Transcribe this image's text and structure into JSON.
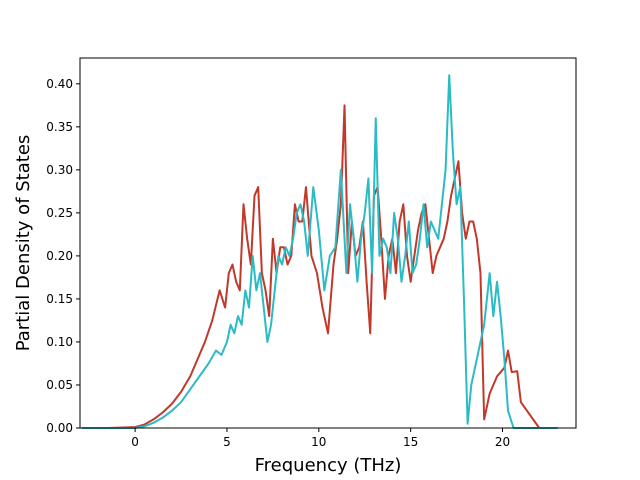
{
  "chart_data": {
    "type": "line",
    "title": "",
    "xlabel": "Frequency (THz)",
    "ylabel": "Partial Density of States",
    "xlim": [
      -3.0,
      24.0
    ],
    "ylim": [
      0.0,
      0.43
    ],
    "xticks": [
      0,
      5,
      10,
      15,
      20
    ],
    "yticks": [
      0.0,
      0.05,
      0.1,
      0.15,
      0.2,
      0.25,
      0.3,
      0.35,
      0.4
    ],
    "xtick_labels": [
      "0",
      "5",
      "10",
      "15",
      "20"
    ],
    "ytick_labels": [
      "0.00",
      "0.05",
      "0.10",
      "0.15",
      "0.20",
      "0.25",
      "0.30",
      "0.35",
      "0.40"
    ],
    "grid": false,
    "legend": false,
    "series": [
      {
        "color": "#c0392b",
        "x": [
          -2.9,
          -1.5,
          0,
          0.5,
          1,
          1.5,
          2,
          2.5,
          3,
          3.5,
          3.8,
          4.2,
          4.6,
          4.9,
          5.1,
          5.3,
          5.5,
          5.7,
          5.9,
          6.1,
          6.3,
          6.5,
          6.7,
          6.9,
          7.1,
          7.3,
          7.5,
          7.7,
          7.9,
          8.1,
          8.3,
          8.5,
          8.7,
          8.9,
          9.1,
          9.3,
          9.6,
          9.9,
          10.2,
          10.5,
          10.8,
          11.0,
          11.2,
          11.4,
          11.6,
          11.8,
          12.0,
          12.2,
          12.4,
          12.6,
          12.8,
          13.0,
          13.2,
          13.4,
          13.6,
          13.8,
          14.0,
          14.2,
          14.4,
          14.6,
          14.8,
          15.0,
          15.2,
          15.4,
          15.6,
          15.8,
          16.0,
          16.2,
          16.4,
          16.6,
          16.8,
          17.0,
          17.2,
          17.4,
          17.6,
          17.8,
          18.0,
          18.2,
          18.4,
          18.6,
          18.8,
          19.0,
          19.3,
          19.5,
          19.7,
          19.9,
          20.1,
          20.3,
          20.5,
          20.8,
          21.0,
          22.0,
          23.0
        ],
        "values": [
          0.0,
          0.0,
          0.001,
          0.004,
          0.01,
          0.018,
          0.028,
          0.042,
          0.06,
          0.085,
          0.1,
          0.125,
          0.16,
          0.14,
          0.18,
          0.19,
          0.17,
          0.16,
          0.26,
          0.22,
          0.19,
          0.27,
          0.28,
          0.18,
          0.16,
          0.13,
          0.22,
          0.18,
          0.21,
          0.21,
          0.19,
          0.2,
          0.26,
          0.24,
          0.24,
          0.28,
          0.2,
          0.18,
          0.14,
          0.11,
          0.19,
          0.22,
          0.26,
          0.375,
          0.18,
          0.24,
          0.2,
          0.21,
          0.24,
          0.17,
          0.11,
          0.27,
          0.28,
          0.22,
          0.15,
          0.2,
          0.22,
          0.18,
          0.24,
          0.26,
          0.2,
          0.17,
          0.2,
          0.23,
          0.25,
          0.26,
          0.22,
          0.18,
          0.2,
          0.21,
          0.22,
          0.24,
          0.27,
          0.29,
          0.31,
          0.25,
          0.22,
          0.24,
          0.24,
          0.22,
          0.18,
          0.01,
          0.04,
          0.05,
          0.06,
          0.065,
          0.07,
          0.09,
          0.065,
          0.066,
          0.03,
          0.0,
          0.0
        ]
      },
      {
        "color": "#2bbbc4",
        "x": [
          -2.9,
          -1.5,
          0,
          0.5,
          1,
          1.5,
          2,
          2.5,
          3,
          3.5,
          4.0,
          4.4,
          4.7,
          5.0,
          5.2,
          5.4,
          5.6,
          5.8,
          6.0,
          6.2,
          6.4,
          6.6,
          6.8,
          7.0,
          7.2,
          7.4,
          7.6,
          7.8,
          8.0,
          8.2,
          8.4,
          8.6,
          8.8,
          9.0,
          9.2,
          9.4,
          9.7,
          10.0,
          10.3,
          10.6,
          10.9,
          11.2,
          11.5,
          11.7,
          11.9,
          12.1,
          12.3,
          12.5,
          12.7,
          12.9,
          13.1,
          13.3,
          13.5,
          13.7,
          13.9,
          14.1,
          14.3,
          14.5,
          14.7,
          14.9,
          15.1,
          15.3,
          15.5,
          15.7,
          15.9,
          16.1,
          16.3,
          16.5,
          16.7,
          16.9,
          17.1,
          17.3,
          17.5,
          17.7,
          17.9,
          18.1,
          18.3,
          18.6,
          19.0,
          19.3,
          19.5,
          19.7,
          19.9,
          20.1,
          20.3,
          20.6,
          20.9,
          22.0,
          23.0
        ],
        "values": [
          0.0,
          0.0,
          0.0,
          0.002,
          0.006,
          0.012,
          0.02,
          0.03,
          0.045,
          0.06,
          0.075,
          0.09,
          0.085,
          0.1,
          0.12,
          0.11,
          0.13,
          0.12,
          0.16,
          0.14,
          0.2,
          0.16,
          0.18,
          0.14,
          0.1,
          0.12,
          0.16,
          0.2,
          0.19,
          0.21,
          0.2,
          0.22,
          0.25,
          0.26,
          0.24,
          0.2,
          0.28,
          0.23,
          0.16,
          0.2,
          0.21,
          0.3,
          0.18,
          0.26,
          0.22,
          0.17,
          0.22,
          0.25,
          0.29,
          0.18,
          0.36,
          0.2,
          0.22,
          0.21,
          0.18,
          0.25,
          0.22,
          0.17,
          0.2,
          0.24,
          0.18,
          0.19,
          0.22,
          0.26,
          0.21,
          0.24,
          0.23,
          0.22,
          0.26,
          0.3,
          0.41,
          0.32,
          0.26,
          0.28,
          0.15,
          0.005,
          0.05,
          0.08,
          0.12,
          0.18,
          0.13,
          0.17,
          0.13,
          0.08,
          0.02,
          0.0,
          0.0,
          0.0,
          0.0
        ]
      }
    ]
  }
}
